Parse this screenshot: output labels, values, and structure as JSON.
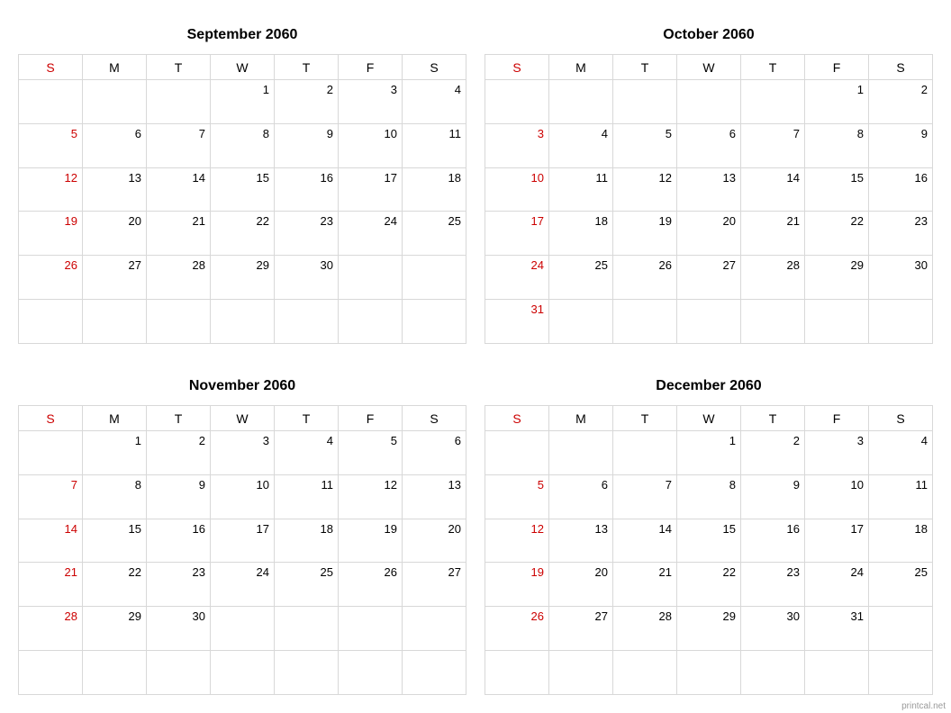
{
  "day_headers": [
    "S",
    "M",
    "T",
    "W",
    "T",
    "F",
    "S"
  ],
  "sunday_color": "#cc0000",
  "text_color": "#000000",
  "border_color": "#d8d8d8",
  "background_color": "#ffffff",
  "watermark": "printcal.net",
  "months": [
    {
      "title": "September 2060",
      "weeks": [
        [
          "",
          "",
          "",
          "1",
          "2",
          "3",
          "4"
        ],
        [
          "5",
          "6",
          "7",
          "8",
          "9",
          "10",
          "11"
        ],
        [
          "12",
          "13",
          "14",
          "15",
          "16",
          "17",
          "18"
        ],
        [
          "19",
          "20",
          "21",
          "22",
          "23",
          "24",
          "25"
        ],
        [
          "26",
          "27",
          "28",
          "29",
          "30",
          "",
          ""
        ],
        [
          "",
          "",
          "",
          "",
          "",
          "",
          ""
        ]
      ]
    },
    {
      "title": "October 2060",
      "weeks": [
        [
          "",
          "",
          "",
          "",
          "",
          "1",
          "2"
        ],
        [
          "3",
          "4",
          "5",
          "6",
          "7",
          "8",
          "9"
        ],
        [
          "10",
          "11",
          "12",
          "13",
          "14",
          "15",
          "16"
        ],
        [
          "17",
          "18",
          "19",
          "20",
          "21",
          "22",
          "23"
        ],
        [
          "24",
          "25",
          "26",
          "27",
          "28",
          "29",
          "30"
        ],
        [
          "31",
          "",
          "",
          "",
          "",
          "",
          ""
        ]
      ]
    },
    {
      "title": "November 2060",
      "weeks": [
        [
          "",
          "1",
          "2",
          "3",
          "4",
          "5",
          "6"
        ],
        [
          "7",
          "8",
          "9",
          "10",
          "11",
          "12",
          "13"
        ],
        [
          "14",
          "15",
          "16",
          "17",
          "18",
          "19",
          "20"
        ],
        [
          "21",
          "22",
          "23",
          "24",
          "25",
          "26",
          "27"
        ],
        [
          "28",
          "29",
          "30",
          "",
          "",
          "",
          ""
        ],
        [
          "",
          "",
          "",
          "",
          "",
          "",
          ""
        ]
      ]
    },
    {
      "title": "December 2060",
      "weeks": [
        [
          "",
          "",
          "",
          "1",
          "2",
          "3",
          "4"
        ],
        [
          "5",
          "6",
          "7",
          "8",
          "9",
          "10",
          "11"
        ],
        [
          "12",
          "13",
          "14",
          "15",
          "16",
          "17",
          "18"
        ],
        [
          "19",
          "20",
          "21",
          "22",
          "23",
          "24",
          "25"
        ],
        [
          "26",
          "27",
          "28",
          "29",
          "30",
          "31",
          ""
        ],
        [
          "",
          "",
          "",
          "",
          "",
          "",
          ""
        ]
      ]
    }
  ]
}
